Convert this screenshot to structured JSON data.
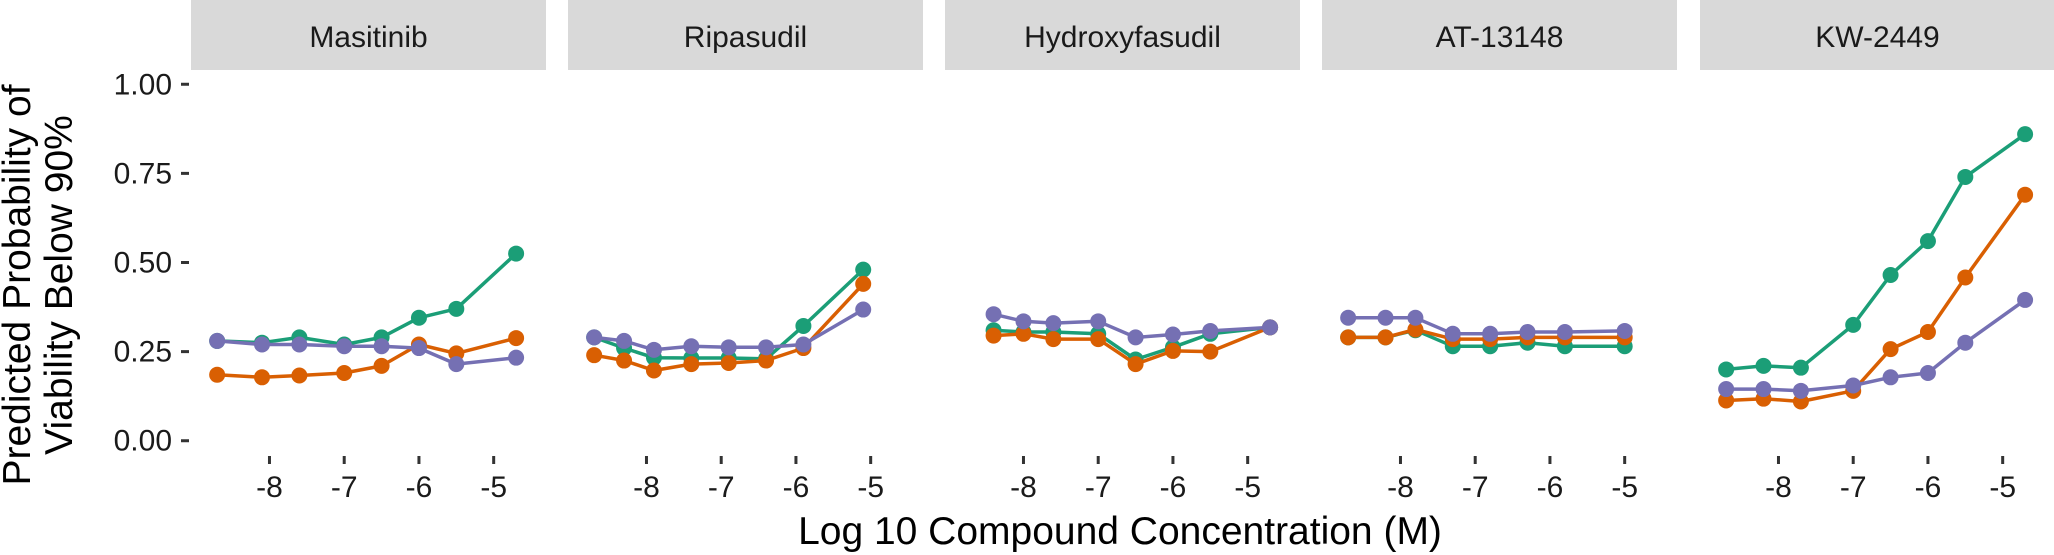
{
  "chart_data": {
    "type": "line",
    "xlabel": "Log 10 Compound Concentration (M)",
    "ylabel": [
      "Predicted Probability of",
      "Viability Below 90%"
    ],
    "x_ticks": [
      -8,
      -7,
      -6,
      -5
    ],
    "y_ticks": [
      "0.00",
      "0.25",
      "0.50",
      "0.75",
      "1.00"
    ],
    "y_tick_values": [
      0,
      0.25,
      0.5,
      0.75,
      1.0
    ],
    "xlim": [
      -9.05,
      -4.3
    ],
    "ylim": [
      -0.04,
      1.04
    ],
    "x": [
      -8.7,
      -8.4,
      -8.1,
      -7.7,
      -7.4,
      -7.0,
      -6.7,
      -6.3,
      -6.0,
      -5.7,
      -5.3,
      -4.7
    ],
    "colors": [
      "#1b9e77",
      "#d95f02",
      "#7570b3"
    ],
    "panels": [
      {
        "title": "Masitinib",
        "series": [
          {
            "color": "#1b9e77",
            "points": [
              [
                -8.7,
                0.28
              ],
              [
                -8.1,
                0.275
              ],
              [
                -7.6,
                0.29
              ],
              [
                -7.0,
                0.27
              ],
              [
                -6.5,
                0.29
              ],
              [
                -6.0,
                0.345
              ],
              [
                -5.5,
                0.37
              ],
              [
                -4.7,
                0.525
              ]
            ]
          },
          {
            "color": "#d95f02",
            "points": [
              [
                -8.7,
                0.185
              ],
              [
                -8.1,
                0.178
              ],
              [
                -7.6,
                0.183
              ],
              [
                -7.0,
                0.19
              ],
              [
                -6.5,
                0.21
              ],
              [
                -6.0,
                0.27
              ],
              [
                -5.5,
                0.245
              ],
              [
                -4.7,
                0.288
              ]
            ]
          },
          {
            "color": "#7570b3",
            "points": [
              [
                -8.7,
                0.28
              ],
              [
                -8.1,
                0.27
              ],
              [
                -7.6,
                0.27
              ],
              [
                -7.0,
                0.265
              ],
              [
                -6.5,
                0.265
              ],
              [
                -6.0,
                0.26
              ],
              [
                -5.5,
                0.215
              ],
              [
                -4.7,
                0.233
              ]
            ]
          }
        ]
      },
      {
        "title": "Ripasudil",
        "series": [
          {
            "color": "#1b9e77",
            "points": [
              [
                -8.7,
                0.29
              ],
              [
                -8.3,
                0.26
              ],
              [
                -7.9,
                0.233
              ],
              [
                -7.4,
                0.232
              ],
              [
                -6.9,
                0.232
              ],
              [
                -6.4,
                0.23
              ],
              [
                -5.9,
                0.322
              ],
              [
                -5.1,
                0.48
              ]
            ]
          },
          {
            "color": "#d95f02",
            "points": [
              [
                -8.7,
                0.24
              ],
              [
                -8.3,
                0.225
              ],
              [
                -7.9,
                0.197
              ],
              [
                -7.4,
                0.215
              ],
              [
                -6.9,
                0.218
              ],
              [
                -6.4,
                0.225
              ],
              [
                -5.9,
                0.26
              ],
              [
                -5.1,
                0.44
              ]
            ]
          },
          {
            "color": "#7570b3",
            "points": [
              [
                -8.7,
                0.29
              ],
              [
                -8.3,
                0.28
              ],
              [
                -7.9,
                0.255
              ],
              [
                -7.4,
                0.265
              ],
              [
                -6.9,
                0.262
              ],
              [
                -6.4,
                0.262
              ],
              [
                -5.9,
                0.27
              ],
              [
                -5.1,
                0.368
              ]
            ]
          }
        ]
      },
      {
        "title": "Hydroxyfasudil",
        "series": [
          {
            "color": "#1b9e77",
            "points": [
              [
                -8.4,
                0.31
              ],
              [
                -8.0,
                0.305
              ],
              [
                -7.6,
                0.305
              ],
              [
                -7.0,
                0.3
              ],
              [
                -6.5,
                0.228
              ],
              [
                -6.0,
                0.262
              ],
              [
                -5.5,
                0.3
              ],
              [
                -4.7,
                0.318
              ]
            ]
          },
          {
            "color": "#d95f02",
            "points": [
              [
                -8.4,
                0.295
              ],
              [
                -8.0,
                0.3
              ],
              [
                -7.6,
                0.285
              ],
              [
                -7.0,
                0.285
              ],
              [
                -6.5,
                0.215
              ],
              [
                -6.0,
                0.252
              ],
              [
                -5.5,
                0.25
              ],
              [
                -4.7,
                0.318
              ]
            ]
          },
          {
            "color": "#7570b3",
            "points": [
              [
                -8.4,
                0.355
              ],
              [
                -8.0,
                0.335
              ],
              [
                -7.6,
                0.33
              ],
              [
                -7.0,
                0.335
              ],
              [
                -6.5,
                0.29
              ],
              [
                -6.0,
                0.298
              ],
              [
                -5.5,
                0.308
              ],
              [
                -4.7,
                0.318
              ]
            ]
          }
        ]
      },
      {
        "title": "AT-13148",
        "series": [
          {
            "color": "#1b9e77",
            "points": [
              [
                -8.7,
                0.29
              ],
              [
                -8.2,
                0.29
              ],
              [
                -7.8,
                0.31
              ],
              [
                -7.3,
                0.265
              ],
              [
                -6.8,
                0.265
              ],
              [
                -6.3,
                0.275
              ],
              [
                -5.8,
                0.265
              ],
              [
                -5.0,
                0.265
              ]
            ]
          },
          {
            "color": "#d95f02",
            "points": [
              [
                -8.7,
                0.29
              ],
              [
                -8.2,
                0.29
              ],
              [
                -7.8,
                0.312
              ],
              [
                -7.3,
                0.285
              ],
              [
                -6.8,
                0.285
              ],
              [
                -6.3,
                0.29
              ],
              [
                -5.8,
                0.29
              ],
              [
                -5.0,
                0.29
              ]
            ]
          },
          {
            "color": "#7570b3",
            "points": [
              [
                -8.7,
                0.345
              ],
              [
                -8.2,
                0.345
              ],
              [
                -7.8,
                0.345
              ],
              [
                -7.3,
                0.3
              ],
              [
                -6.8,
                0.3
              ],
              [
                -6.3,
                0.305
              ],
              [
                -5.8,
                0.305
              ],
              [
                -5.0,
                0.308
              ]
            ]
          }
        ]
      },
      {
        "title": "KW-2449",
        "series": [
          {
            "color": "#1b9e77",
            "points": [
              [
                -8.7,
                0.2
              ],
              [
                -8.2,
                0.21
              ],
              [
                -7.7,
                0.205
              ],
              [
                -7.0,
                0.325
              ],
              [
                -6.5,
                0.465
              ],
              [
                -6.0,
                0.56
              ],
              [
                -5.5,
                0.74
              ],
              [
                -4.7,
                0.86
              ]
            ]
          },
          {
            "color": "#d95f02",
            "points": [
              [
                -8.7,
                0.113
              ],
              [
                -8.2,
                0.118
              ],
              [
                -7.7,
                0.11
              ],
              [
                -7.0,
                0.14
              ],
              [
                -6.5,
                0.257
              ],
              [
                -6.0,
                0.305
              ],
              [
                -5.5,
                0.458
              ],
              [
                -4.7,
                0.69
              ]
            ]
          },
          {
            "color": "#7570b3",
            "points": [
              [
                -8.7,
                0.145
              ],
              [
                -8.2,
                0.145
              ],
              [
                -7.7,
                0.14
              ],
              [
                -7.0,
                0.155
              ],
              [
                -6.5,
                0.178
              ],
              [
                -6.0,
                0.19
              ],
              [
                -5.5,
                0.275
              ],
              [
                -4.7,
                0.395
              ]
            ]
          }
        ]
      }
    ]
  }
}
